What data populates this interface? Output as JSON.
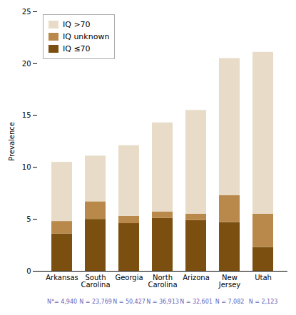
{
  "chart_data": {
    "type": "bar",
    "stacked": true,
    "categories": [
      "Arkansas",
      "South\nCarolina",
      "Georgia",
      "North\nCarolina",
      "Arizona",
      "New\nJersey",
      "Utah"
    ],
    "series": [
      {
        "name": "IQ ≤70",
        "color": "#7B4F10",
        "values": [
          3.6,
          5.0,
          4.6,
          5.1,
          4.9,
          4.7,
          2.3
        ]
      },
      {
        "name": "IQ unknown",
        "color": "#B8894A",
        "values": [
          1.2,
          1.7,
          0.7,
          0.6,
          0.6,
          2.6,
          3.2
        ]
      },
      {
        "name": "IQ >70",
        "color": "#E8DCC8",
        "values": [
          5.7,
          4.4,
          6.8,
          8.6,
          10.0,
          13.2,
          15.6
        ]
      }
    ],
    "ylabel": "Prevalence",
    "ylim": [
      0,
      25
    ],
    "yticks": [
      0,
      5,
      10,
      15,
      20,
      25
    ],
    "grid": false,
    "legend": "upper left",
    "annotations": [
      {
        "text": "N*= 4,940",
        "x": "Arkansas",
        "color": "#6666BB"
      },
      {
        "text": "N = 23,769",
        "x": "South\nCarolina",
        "color": "#6666BB"
      },
      {
        "text": "N = 50,427",
        "x": "Georgia",
        "color": "#6666BB"
      },
      {
        "text": "N = 36,913",
        "x": "North\nCarolina",
        "color": "#6666BB"
      },
      {
        "text": "N = 32,601",
        "x": "Arizona",
        "color": "#6666BB"
      },
      {
        "text": "N = 7,082",
        "x": "New\nJersey",
        "color": "#6666BB"
      },
      {
        "text": "N = 2,123",
        "x": "Utah",
        "color": "#6666BB"
      }
    ]
  }
}
